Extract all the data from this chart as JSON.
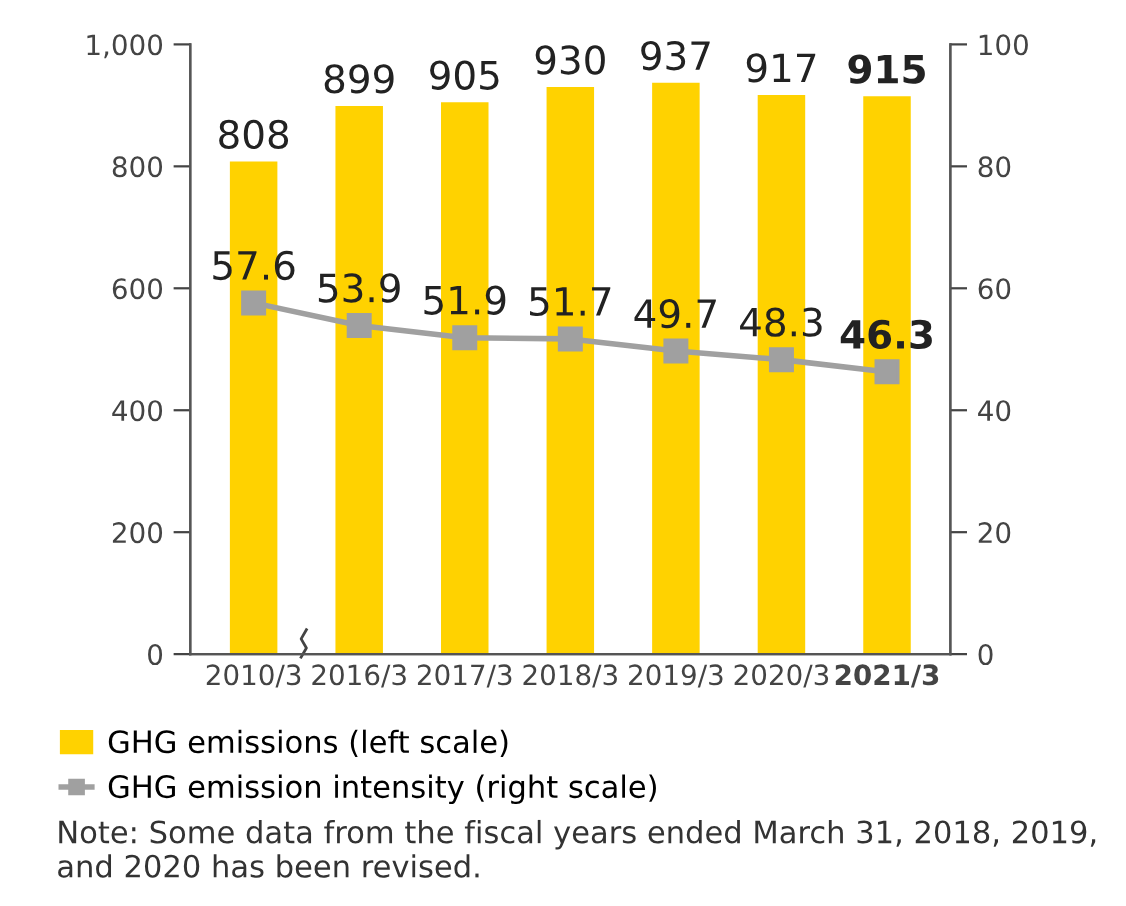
{
  "chart_data": {
    "type": "bar",
    "categories": [
      "2010/3",
      "2016/3",
      "2017/3",
      "2018/3",
      "2019/3",
      "2020/3",
      "2021/3"
    ],
    "series": [
      {
        "name": "GHG emissions (left scale)",
        "color": "#ffd200",
        "values": [
          808,
          899,
          905,
          930,
          937,
          917,
          915
        ]
      },
      {
        "name": "GHG emission intensity (right scale)",
        "type": "line",
        "axis": "y2",
        "color": "#a0a0a0",
        "marker": "square",
        "values": [
          57.6,
          53.9,
          51.9,
          51.7,
          49.7,
          48.3,
          46.3
        ]
      }
    ],
    "ylim": [
      0,
      1000
    ],
    "yticks": [
      0,
      200,
      400,
      600,
      800,
      {
        "value": 1000,
        "label": "1,000"
      }
    ],
    "y2lim": [
      0,
      100
    ],
    "y2ticks": [
      0,
      20,
      40,
      60,
      80,
      100
    ],
    "data_labels": true,
    "grid": false,
    "legend": "bottom",
    "annotations": [
      "Note: Some data from the fiscal years ended March 31, 2018, 2019, and 2020 has been revised."
    ]
  }
}
